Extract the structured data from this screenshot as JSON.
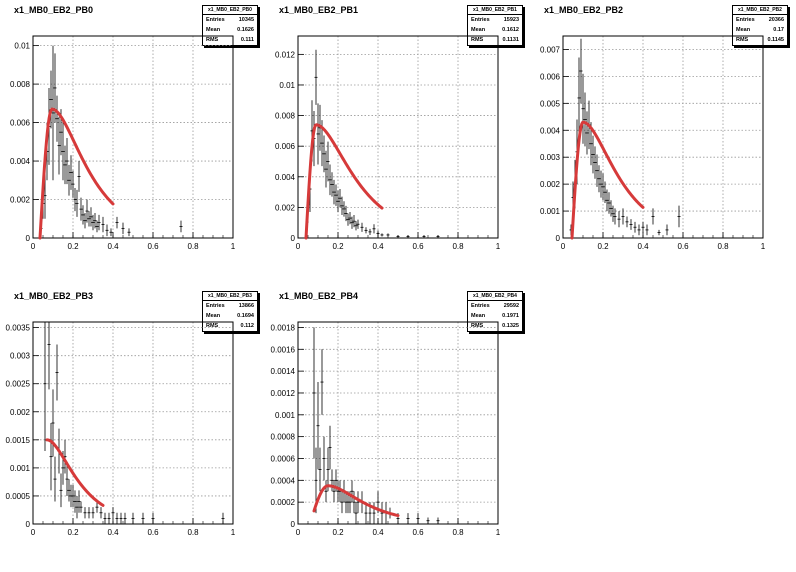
{
  "chart_data": [
    {
      "type": "scatter",
      "title": "x1_MB0_EB2_PB0",
      "stats": {
        "name": "x1_MB0_EB2_PB0",
        "entries_label": "Entries",
        "entries": "10345",
        "mean_label": "Mean",
        "mean": "0.1626",
        "rms_label": "RMS",
        "rms": "0.111"
      },
      "xlim": [
        0,
        1
      ],
      "ylim": [
        0,
        0.0105
      ],
      "xticks": [
        "0",
        "0.2",
        "0.4",
        "0.6",
        "0.8",
        "1"
      ],
      "xtick_values": [
        0,
        0.2,
        0.4,
        0.6,
        0.8,
        1
      ],
      "yticks": [
        "0",
        "0.002",
        "0.004",
        "0.006",
        "0.008",
        "0.01"
      ],
      "ytick_values": [
        0,
        0.002,
        0.004,
        0.006,
        0.008,
        0.01
      ],
      "grid": true,
      "points": [
        [
          0.04,
          0.0005,
          0.0003
        ],
        [
          0.05,
          0.0018,
          0.0008
        ],
        [
          0.06,
          0.0022,
          0.0012
        ],
        [
          0.07,
          0.0045,
          0.0015
        ],
        [
          0.08,
          0.0058,
          0.002
        ],
        [
          0.09,
          0.0072,
          0.0015
        ],
        [
          0.1,
          0.0065,
          0.0035
        ],
        [
          0.11,
          0.0078,
          0.0018
        ],
        [
          0.12,
          0.0062,
          0.0012
        ],
        [
          0.13,
          0.0048,
          0.0015
        ],
        [
          0.14,
          0.0055,
          0.0012
        ],
        [
          0.15,
          0.0045,
          0.0015
        ],
        [
          0.16,
          0.0038,
          0.001
        ],
        [
          0.17,
          0.004,
          0.0012
        ],
        [
          0.18,
          0.003,
          0.0008
        ],
        [
          0.19,
          0.0034,
          0.0009
        ],
        [
          0.2,
          0.0028,
          0.0007
        ],
        [
          0.21,
          0.002,
          0.0006
        ],
        [
          0.22,
          0.0018,
          0.0007
        ],
        [
          0.23,
          0.0032,
          0.0008
        ],
        [
          0.24,
          0.0015,
          0.0006
        ],
        [
          0.25,
          0.0012,
          0.0005
        ],
        [
          0.26,
          0.0009,
          0.0004
        ],
        [
          0.27,
          0.0014,
          0.0006
        ],
        [
          0.28,
          0.001,
          0.0004
        ],
        [
          0.29,
          0.0011,
          0.0005
        ],
        [
          0.3,
          0.0008,
          0.0004
        ],
        [
          0.31,
          0.0009,
          0.0004
        ],
        [
          0.32,
          0.0006,
          0.0003
        ],
        [
          0.33,
          0.0008,
          0.0004
        ],
        [
          0.35,
          0.0007,
          0.0004
        ],
        [
          0.37,
          0.0004,
          0.0003
        ],
        [
          0.39,
          0.0003,
          0.0002
        ],
        [
          0.42,
          0.0008,
          0.0003
        ],
        [
          0.45,
          0.0005,
          0.0003
        ],
        [
          0.48,
          0.0003,
          0.0002
        ],
        [
          0.74,
          0.0006,
          0.0003
        ]
      ],
      "fit": {
        "from": 0.035,
        "to": 0.4,
        "amp": 0.0067,
        "peak": 0.095,
        "width": 0.55,
        "x0": 0.035
      }
    },
    {
      "type": "scatter",
      "title": "x1_MB0_EB2_PB1",
      "stats": {
        "name": "x1_MB0_EB2_PB1",
        "entries_label": "Entries",
        "entries": "15923",
        "mean_label": "Mean",
        "mean": "0.1612",
        "rms_label": "RMS",
        "rms": "0.1131"
      },
      "xlim": [
        0,
        1
      ],
      "ylim": [
        0,
        0.0132
      ],
      "xticks": [
        "0",
        "0.2",
        "0.4",
        "0.6",
        "0.8",
        "1"
      ],
      "xtick_values": [
        0,
        0.2,
        0.4,
        0.6,
        0.8,
        1
      ],
      "yticks": [
        "0",
        "0.002",
        "0.004",
        "0.006",
        "0.008",
        "0.01",
        "0.012"
      ],
      "ytick_values": [
        0,
        0.002,
        0.004,
        0.006,
        0.008,
        0.01,
        0.012
      ],
      "grid": true,
      "points": [
        [
          0.05,
          0.0022,
          0.0012
        ],
        [
          0.06,
          0.0032,
          0.0015
        ],
        [
          0.07,
          0.007,
          0.002
        ],
        [
          0.08,
          0.0065,
          0.0018
        ],
        [
          0.09,
          0.0105,
          0.0018
        ],
        [
          0.1,
          0.0068,
          0.002
        ],
        [
          0.11,
          0.0072,
          0.0015
        ],
        [
          0.12,
          0.0062,
          0.0015
        ],
        [
          0.13,
          0.0055,
          0.0012
        ],
        [
          0.14,
          0.0045,
          0.0012
        ],
        [
          0.15,
          0.005,
          0.0013
        ],
        [
          0.16,
          0.0038,
          0.001
        ],
        [
          0.17,
          0.0035,
          0.0008
        ],
        [
          0.18,
          0.003,
          0.0008
        ],
        [
          0.19,
          0.0028,
          0.0007
        ],
        [
          0.2,
          0.0024,
          0.0007
        ],
        [
          0.21,
          0.0026,
          0.0006
        ],
        [
          0.22,
          0.0021,
          0.0006
        ],
        [
          0.23,
          0.0019,
          0.0005
        ],
        [
          0.24,
          0.0016,
          0.0005
        ],
        [
          0.25,
          0.0012,
          0.0004
        ],
        [
          0.26,
          0.0013,
          0.0004
        ],
        [
          0.27,
          0.001,
          0.0004
        ],
        [
          0.28,
          0.0011,
          0.0004
        ],
        [
          0.29,
          0.0008,
          0.0003
        ],
        [
          0.3,
          0.0009,
          0.0003
        ],
        [
          0.32,
          0.0007,
          0.0003
        ],
        [
          0.34,
          0.0005,
          0.0002
        ],
        [
          0.36,
          0.0004,
          0.0002
        ],
        [
          0.38,
          0.0006,
          0.0003
        ],
        [
          0.4,
          0.0003,
          0.0002
        ],
        [
          0.42,
          0.0002,
          0.0001
        ],
        [
          0.45,
          0.0002,
          0.0001
        ],
        [
          0.5,
          0.0001,
          0.0001
        ],
        [
          0.55,
          0.0001,
          0.0001
        ],
        [
          0.63,
          0.0001,
          0.0001
        ],
        [
          0.7,
          0.0001,
          0.0001
        ]
      ],
      "fit": {
        "from": 0.04,
        "to": 0.42,
        "amp": 0.0074,
        "peak": 0.09,
        "width": 0.55,
        "x0": 0.04
      }
    },
    {
      "type": "scatter",
      "title": "x1_MB0_EB2_PB2",
      "stats": {
        "name": "x1_MB0_EB2_PB2",
        "entries_label": "Entries",
        "entries": "20366",
        "mean_label": "Mean",
        "mean": "0.17",
        "rms_label": "RMS",
        "rms": "0.1145"
      },
      "xlim": [
        0,
        1
      ],
      "ylim": [
        0,
        0.0075
      ],
      "xticks": [
        "0",
        "0.2",
        "0.4",
        "0.6",
        "0.8",
        "1"
      ],
      "xtick_values": [
        0,
        0.2,
        0.4,
        0.6,
        0.8,
        1
      ],
      "yticks": [
        "0",
        "0.001",
        "0.002",
        "0.003",
        "0.004",
        "0.005",
        "0.006",
        "0.007"
      ],
      "ytick_values": [
        0,
        0.001,
        0.002,
        0.003,
        0.004,
        0.005,
        0.006,
        0.007
      ],
      "grid": true,
      "points": [
        [
          0.04,
          0.0003,
          0.0002
        ],
        [
          0.05,
          0.0015,
          0.0006
        ],
        [
          0.06,
          0.002,
          0.0009
        ],
        [
          0.07,
          0.0032,
          0.0012
        ],
        [
          0.08,
          0.0052,
          0.0015
        ],
        [
          0.09,
          0.0062,
          0.0012
        ],
        [
          0.1,
          0.0048,
          0.0013
        ],
        [
          0.11,
          0.0044,
          0.001
        ],
        [
          0.12,
          0.0039,
          0.0008
        ],
        [
          0.13,
          0.0042,
          0.0009
        ],
        [
          0.14,
          0.0035,
          0.0008
        ],
        [
          0.15,
          0.0031,
          0.0007
        ],
        [
          0.16,
          0.0028,
          0.0006
        ],
        [
          0.17,
          0.0025,
          0.0006
        ],
        [
          0.18,
          0.0022,
          0.0005
        ],
        [
          0.19,
          0.002,
          0.0005
        ],
        [
          0.2,
          0.0019,
          0.0005
        ],
        [
          0.21,
          0.0017,
          0.0004
        ],
        [
          0.22,
          0.0014,
          0.0004
        ],
        [
          0.23,
          0.0013,
          0.0004
        ],
        [
          0.24,
          0.0011,
          0.0003
        ],
        [
          0.25,
          0.0009,
          0.0003
        ],
        [
          0.26,
          0.0008,
          0.0003
        ],
        [
          0.28,
          0.0007,
          0.0003
        ],
        [
          0.3,
          0.0008,
          0.0003
        ],
        [
          0.32,
          0.0006,
          0.0002
        ],
        [
          0.34,
          0.0005,
          0.0002
        ],
        [
          0.36,
          0.0004,
          0.0002
        ],
        [
          0.38,
          0.0003,
          0.0002
        ],
        [
          0.4,
          0.0004,
          0.0002
        ],
        [
          0.42,
          0.0003,
          0.0002
        ],
        [
          0.45,
          0.0008,
          0.0003
        ],
        [
          0.48,
          0.0002,
          0.0001
        ],
        [
          0.52,
          0.0003,
          0.0002
        ],
        [
          0.58,
          0.0008,
          0.0004
        ]
      ],
      "fit": {
        "from": 0.045,
        "to": 0.4,
        "amp": 0.0043,
        "peak": 0.1,
        "width": 0.55,
        "x0": 0.045
      }
    },
    {
      "type": "scatter",
      "title": "x1_MB0_EB2_PB3",
      "stats": {
        "name": "x1_MB0_EB2_PB3",
        "entries_label": "Entries",
        "entries": "13866",
        "mean_label": "Mean",
        "mean": "0.1694",
        "rms_label": "RMS",
        "rms": "0.112"
      },
      "xlim": [
        0,
        1
      ],
      "ylim": [
        0,
        0.0036
      ],
      "xticks": [
        "0",
        "0.2",
        "0.4",
        "0.6",
        "0.8",
        "1"
      ],
      "xtick_values": [
        0,
        0.2,
        0.4,
        0.6,
        0.8,
        1
      ],
      "yticks": [
        "0",
        "0.0005",
        "0.001",
        "0.0015",
        "0.002",
        "0.0025",
        "0.003",
        "0.0035"
      ],
      "ytick_values": [
        0,
        0.0005,
        0.001,
        0.0015,
        0.002,
        0.0025,
        0.003,
        0.0035
      ],
      "grid": true,
      "points": [
        [
          0.06,
          0.0025,
          0.0012
        ],
        [
          0.08,
          0.0032,
          0.0008
        ],
        [
          0.09,
          0.0012,
          0.0006
        ],
        [
          0.1,
          0.0018,
          0.0006
        ],
        [
          0.11,
          0.0008,
          0.0004
        ],
        [
          0.12,
          0.0027,
          0.0005
        ],
        [
          0.13,
          0.0013,
          0.0004
        ],
        [
          0.14,
          0.0006,
          0.0003
        ],
        [
          0.15,
          0.001,
          0.0003
        ],
        [
          0.16,
          0.0012,
          0.0003
        ],
        [
          0.17,
          0.0008,
          0.0003
        ],
        [
          0.18,
          0.0006,
          0.0002
        ],
        [
          0.19,
          0.0005,
          0.0002
        ],
        [
          0.2,
          0.0005,
          0.0002
        ],
        [
          0.21,
          0.0004,
          0.0002
        ],
        [
          0.22,
          0.0003,
          0.0002
        ],
        [
          0.23,
          0.0004,
          0.0002
        ],
        [
          0.24,
          0.0003,
          0.0001
        ],
        [
          0.26,
          0.0002,
          0.0001
        ],
        [
          0.28,
          0.0002,
          0.0001
        ],
        [
          0.3,
          0.0002,
          0.0001
        ],
        [
          0.32,
          0.0003,
          0.0001
        ],
        [
          0.34,
          0.0002,
          0.0001
        ],
        [
          0.36,
          0.0001,
          0.0001
        ],
        [
          0.38,
          0.0001,
          0.0001
        ],
        [
          0.4,
          0.0002,
          0.0001
        ],
        [
          0.42,
          0.0001,
          0.0001
        ],
        [
          0.44,
          0.0001,
          0.0001
        ],
        [
          0.46,
          0.0001,
          0.0001
        ],
        [
          0.5,
          0.0001,
          0.0001
        ],
        [
          0.55,
          0.0001,
          0.0001
        ],
        [
          0.6,
          0.0001,
          0.0001
        ],
        [
          0.95,
          0.0001,
          0.0001
        ]
      ],
      "fit": {
        "from": 0.07,
        "to": 0.35,
        "amp": 0.0015,
        "peak": 0.07,
        "width": 0.5,
        "x0": 0.0
      }
    },
    {
      "type": "scatter",
      "title": "x1_MB0_EB2_PB4",
      "stats": {
        "name": "x1_MB0_EB2_PB4",
        "entries_label": "Entries",
        "entries": "29592",
        "mean_label": "Mean",
        "mean": "0.1971",
        "rms_label": "RMS",
        "rms": "0.1325"
      },
      "xlim": [
        0,
        1
      ],
      "ylim": [
        0,
        0.00185
      ],
      "xticks": [
        "0",
        "0.2",
        "0.4",
        "0.6",
        "0.8",
        "1"
      ],
      "xtick_values": [
        0,
        0.2,
        0.4,
        0.6,
        0.8,
        1
      ],
      "yticks": [
        "0",
        "0.0002",
        "0.0004",
        "0.0006",
        "0.0008",
        "0.001",
        "0.0012",
        "0.0014",
        "0.0016",
        "0.0018"
      ],
      "ytick_values": [
        0,
        0.0002,
        0.0004,
        0.0006,
        0.0008,
        0.001,
        0.0012,
        0.0014,
        0.0016,
        0.0018
      ],
      "grid": true,
      "points": [
        [
          0.08,
          0.0012,
          0.0006
        ],
        [
          0.09,
          0.0004,
          0.0003
        ],
        [
          0.1,
          0.0009,
          0.0004
        ],
        [
          0.11,
          0.0005,
          0.0002
        ],
        [
          0.12,
          0.0013,
          0.0003
        ],
        [
          0.13,
          0.0006,
          0.0002
        ],
        [
          0.14,
          0.0003,
          0.0001
        ],
        [
          0.15,
          0.0005,
          0.0002
        ],
        [
          0.16,
          0.0007,
          0.0002
        ],
        [
          0.17,
          0.0004,
          0.0001
        ],
        [
          0.18,
          0.0003,
          0.0001
        ],
        [
          0.19,
          0.0004,
          0.0001
        ],
        [
          0.2,
          0.0003,
          0.0001
        ],
        [
          0.21,
          0.0003,
          0.0001
        ],
        [
          0.22,
          0.0002,
          0.0001
        ],
        [
          0.23,
          0.0003,
          0.0001
        ],
        [
          0.24,
          0.0002,
          0.0001
        ],
        [
          0.25,
          0.0002,
          0.0001
        ],
        [
          0.26,
          0.0002,
          0.0001
        ],
        [
          0.27,
          0.0003,
          0.0001
        ],
        [
          0.28,
          0.0002,
          0.0001
        ],
        [
          0.29,
          0.0001,
          0.0001
        ],
        [
          0.3,
          0.0002,
          0.0001
        ],
        [
          0.32,
          0.0002,
          0.0001
        ],
        [
          0.34,
          0.0001,
          0.0001
        ],
        [
          0.36,
          0.0001,
          0.0001
        ],
        [
          0.38,
          0.0001,
          0.0001
        ],
        [
          0.4,
          0.0002,
          0.0001
        ],
        [
          0.42,
          0.0001,
          0.0001
        ],
        [
          0.44,
          0.0001,
          0.0001
        ],
        [
          0.46,
          0.0001,
          5e-05
        ],
        [
          0.5,
          5e-05,
          5e-05
        ],
        [
          0.55,
          5e-05,
          5e-05
        ],
        [
          0.6,
          5e-05,
          5e-05
        ],
        [
          0.65,
          3e-05,
          3e-05
        ],
        [
          0.7,
          3e-05,
          3e-05
        ]
      ],
      "fit": {
        "from": 0.08,
        "to": 0.5,
        "amp": 0.00035,
        "peak": 0.15,
        "width": 0.5,
        "x0": 0.06
      }
    }
  ],
  "colors": {
    "fit": "#d63a3a",
    "points": "#000000",
    "grid": "#999999"
  }
}
